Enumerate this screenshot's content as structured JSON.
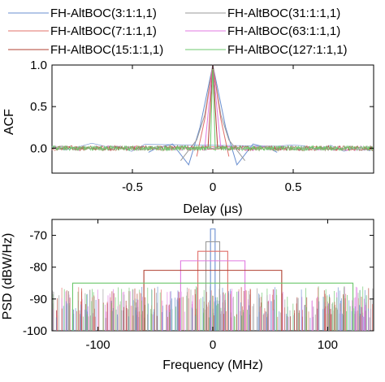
{
  "legend": {
    "entries": [
      {
        "label": "FH-AltBOC(3:1:1,1)",
        "color": "#6a8fd0"
      },
      {
        "label": "FH-AltBOC(31:1:1,1)",
        "color": "#9a9a9a"
      },
      {
        "label": "FH-AltBOC(7:1:1,1)",
        "color": "#e0706a"
      },
      {
        "label": "FH-AltBOC(63:1:1,1)",
        "color": "#e07ae0"
      },
      {
        "label": "FH-AltBOC(15:1:1,1)",
        "color": "#b04030"
      },
      {
        "label": "FH-AltBOC(127:1:1,1)",
        "color": "#6cc86c"
      }
    ]
  },
  "chart_data": [
    {
      "type": "line",
      "xlabel": "Delay (μs)",
      "ylabel": "ACF",
      "xlim": [
        -1.0,
        1.0
      ],
      "ylim": [
        -0.3,
        1.0
      ],
      "xticks": [
        -0.5,
        0,
        0.5
      ],
      "xtick_labels": [
        "-0.5",
        "0",
        "0.5"
      ],
      "yticks": [
        0.0,
        0.5,
        1.0
      ],
      "ytick_labels": [
        "0.0",
        "0.5",
        "1.0"
      ],
      "grid": false,
      "series": [
        {
          "name": "FH-AltBOC(3:1:1,1)",
          "x": [
            -0.4,
            -0.35,
            -0.25,
            -0.15,
            -0.08,
            0,
            0.08,
            0.15,
            0.25,
            0.35,
            0.4
          ],
          "y": [
            -0.05,
            0.0,
            0.05,
            -0.2,
            0.25,
            1.0,
            0.25,
            -0.2,
            0.05,
            0.0,
            -0.05
          ]
        },
        {
          "name": "FH-AltBOC(7:1:1,1)",
          "x": [
            -0.2,
            -0.1,
            -0.05,
            0,
            0.05,
            0.1,
            0.2
          ],
          "y": [
            -0.15,
            0.1,
            0.4,
            1.0,
            0.4,
            0.1,
            -0.15
          ]
        },
        {
          "name": "FH-AltBOC(15:1:1,1)",
          "x": [
            -0.1,
            -0.05,
            0,
            0.05,
            0.1
          ],
          "y": [
            -0.1,
            0.35,
            1.0,
            0.35,
            -0.1
          ]
        },
        {
          "name": "FH-AltBOC(31:1:1,1)",
          "x": [
            -0.05,
            0,
            0.05
          ],
          "y": [
            0.0,
            1.0,
            0.0
          ]
        },
        {
          "name": "FH-AltBOC(63:1:1,1)",
          "x": [
            -0.03,
            0,
            0.03
          ],
          "y": [
            0.0,
            1.0,
            0.0
          ]
        },
        {
          "name": "FH-AltBOC(127:1:1,1)",
          "x": [
            -0.015,
            0,
            0.015
          ],
          "y": [
            0.0,
            1.0,
            0.0
          ]
        }
      ]
    },
    {
      "type": "line",
      "xlabel": "Frequency (MHz)",
      "ylabel": "PSD (dBW/Hz)",
      "xlim": [
        -140,
        140
      ],
      "ylim": [
        -100,
        -65
      ],
      "xticks": [
        -100,
        0,
        100
      ],
      "xtick_labels": [
        "-100",
        "0",
        "100"
      ],
      "yticks": [
        -100,
        -90,
        -80,
        -70
      ],
      "ytick_labels": [
        "-100",
        "-90",
        "-80",
        "-70"
      ],
      "grid": false,
      "series": [
        {
          "name": "FH-AltBOC(3:1:1,1)",
          "x": [
            -2,
            2
          ],
          "y": [
            -68,
            -68
          ]
        },
        {
          "name": "FH-AltBOC(7:1:1,1)",
          "x": [
            -6,
            6
          ],
          "y": [
            -72,
            -72
          ]
        },
        {
          "name": "FH-AltBOC(15:1:1,1)",
          "x": [
            -13,
            13
          ],
          "y": [
            -75,
            -75
          ]
        },
        {
          "name": "FH-AltBOC(31:1:1,1)",
          "x": [
            -28,
            28
          ],
          "y": [
            -78,
            -78
          ]
        },
        {
          "name": "FH-AltBOC(63:1:1,1)",
          "x": [
            -60,
            60
          ],
          "y": [
            -81,
            -81
          ]
        },
        {
          "name": "FH-AltBOC(127:1:1,1)",
          "x": [
            -122,
            122
          ],
          "y": [
            -85,
            -85
          ]
        }
      ]
    }
  ]
}
